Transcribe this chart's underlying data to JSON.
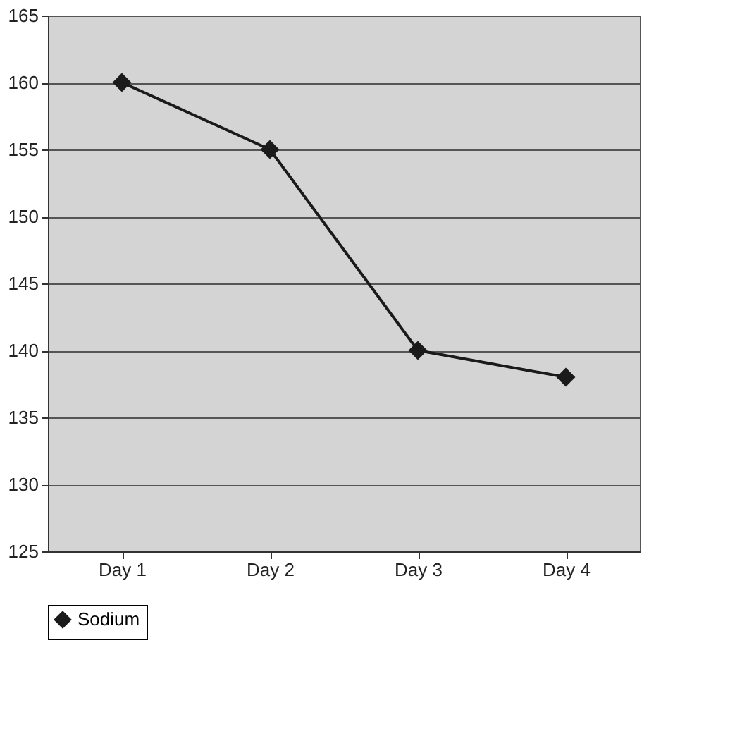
{
  "chart_data": {
    "type": "line",
    "categories": [
      "Day 1",
      "Day 2",
      "Day 3",
      "Day 4"
    ],
    "series": [
      {
        "name": "Sodium",
        "color": "#1a1a1a",
        "values": [
          160,
          155,
          140,
          138
        ]
      }
    ],
    "ylim": [
      125,
      165
    ],
    "yticks": [
      125,
      130,
      135,
      140,
      145,
      150,
      155,
      160,
      165
    ],
    "grid": "y",
    "legend": "bottom",
    "marker": "diamond",
    "line_style": "solid"
  }
}
